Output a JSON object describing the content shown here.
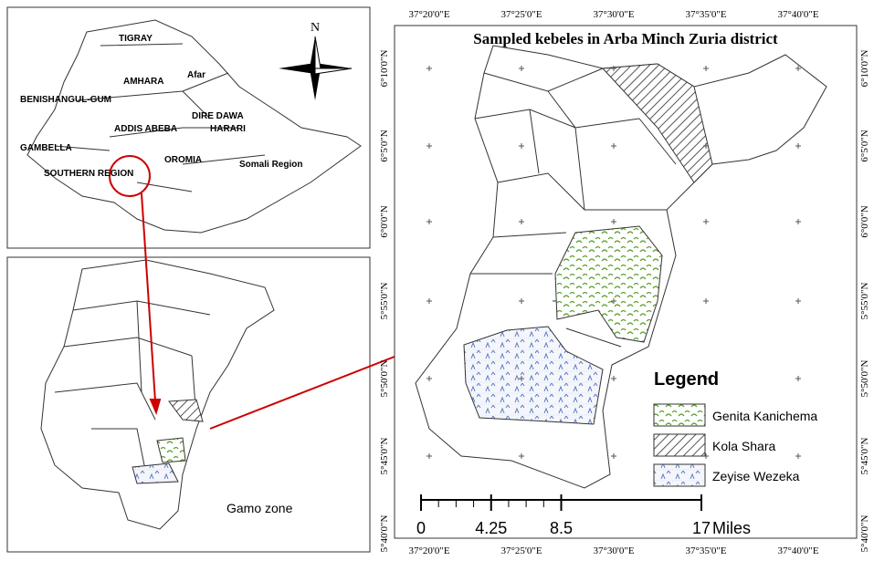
{
  "overview_map": {
    "labels": [
      "TIGRAY",
      "AMHARA",
      "Afar",
      "BENISHANGUL-GUM",
      "ADDIS ABEBA",
      "DIRE DAWA",
      "HARARI",
      "OROMIA",
      "GAMBELLA",
      "SOUTHERN REGION",
      "Somali Region"
    ],
    "north_arrow": "N"
  },
  "zone_map": {
    "label": "Gamo zone"
  },
  "district_map": {
    "title": "Sampled kebeles in Arba Minch Zuria district",
    "lon_labels": [
      "37°20'0\"E",
      "37°25'0\"E",
      "37°30'0\"E",
      "37°35'0\"E",
      "37°40'0\"E"
    ],
    "lat_labels": [
      "6°10'0\"N",
      "6°5'0\"N",
      "6°0'0\"N",
      "5°55'0\"N",
      "5°50'0\"N",
      "5°45'0\"N",
      "5°40'0\"N"
    ],
    "legend": {
      "title": "Legend",
      "items": [
        "Genita Kanichema",
        "Kola Shara",
        "Zeyise Wezeka"
      ]
    },
    "scale_bar": {
      "ticks": [
        0,
        4.25,
        8.5,
        17
      ],
      "unit": "Miles"
    }
  }
}
